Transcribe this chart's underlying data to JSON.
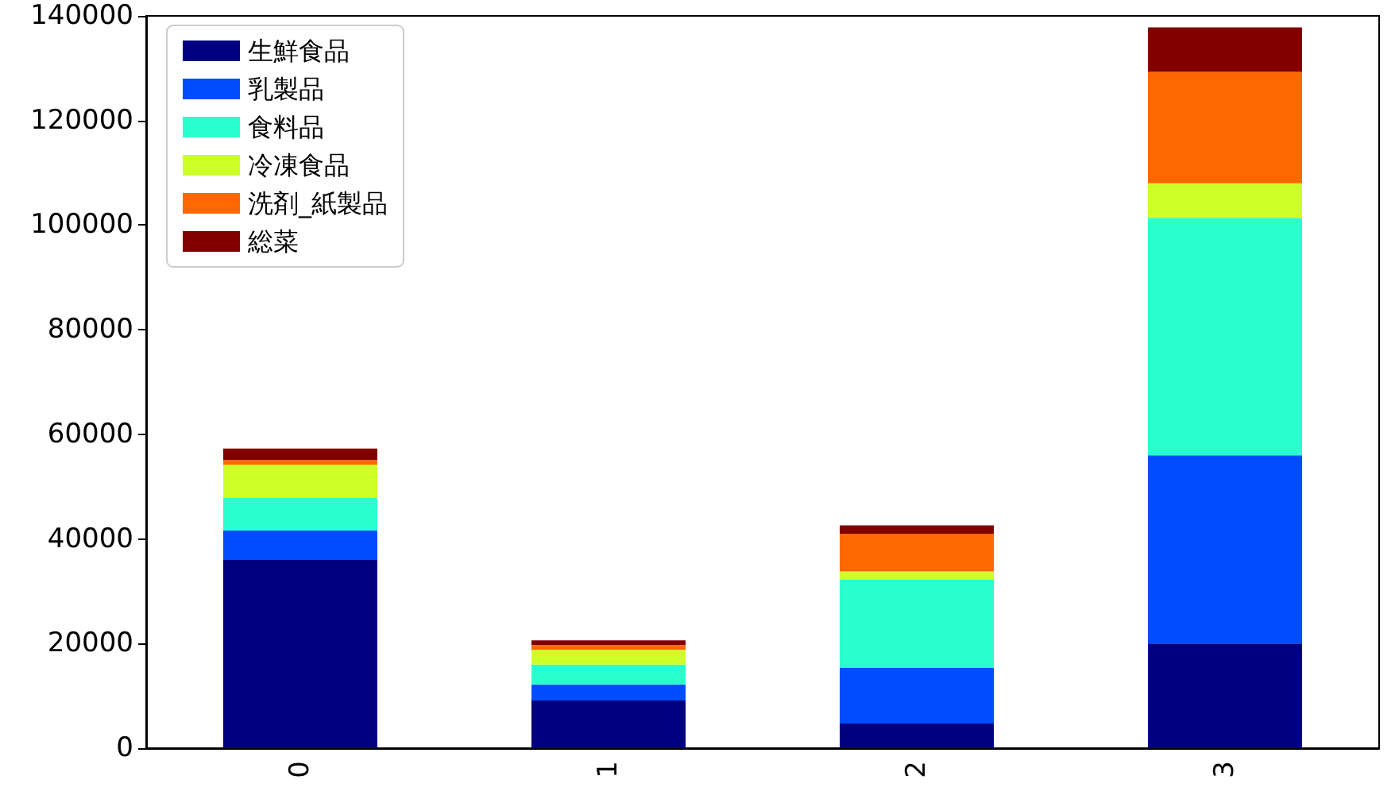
{
  "chart_data": {
    "type": "bar",
    "stacked": true,
    "categories": [
      "0",
      "1",
      "2",
      "3"
    ],
    "series": [
      {
        "name": "生鮮食品",
        "color": "#000080",
        "values": [
          36000,
          9100,
          4700,
          20000
        ]
      },
      {
        "name": "乳製品",
        "color": "#004cff",
        "values": [
          5600,
          3100,
          10700,
          36000
        ]
      },
      {
        "name": "食料品",
        "color": "#29ffce",
        "values": [
          6300,
          3800,
          16800,
          45400
        ]
      },
      {
        "name": "冷凍食品",
        "color": "#ceff29",
        "values": [
          6300,
          2800,
          1600,
          6600
        ]
      },
      {
        "name": "洗剤_紙製品",
        "color": "#ff6800",
        "values": [
          900,
          900,
          7200,
          21300
        ]
      },
      {
        "name": "総菜",
        "color": "#800000",
        "values": [
          2200,
          900,
          1600,
          8500
        ]
      }
    ],
    "ylim": [
      0,
      140000
    ],
    "yticks": [
      0,
      20000,
      40000,
      60000,
      80000,
      100000,
      120000,
      140000
    ],
    "grid": false,
    "legend": "top left"
  }
}
